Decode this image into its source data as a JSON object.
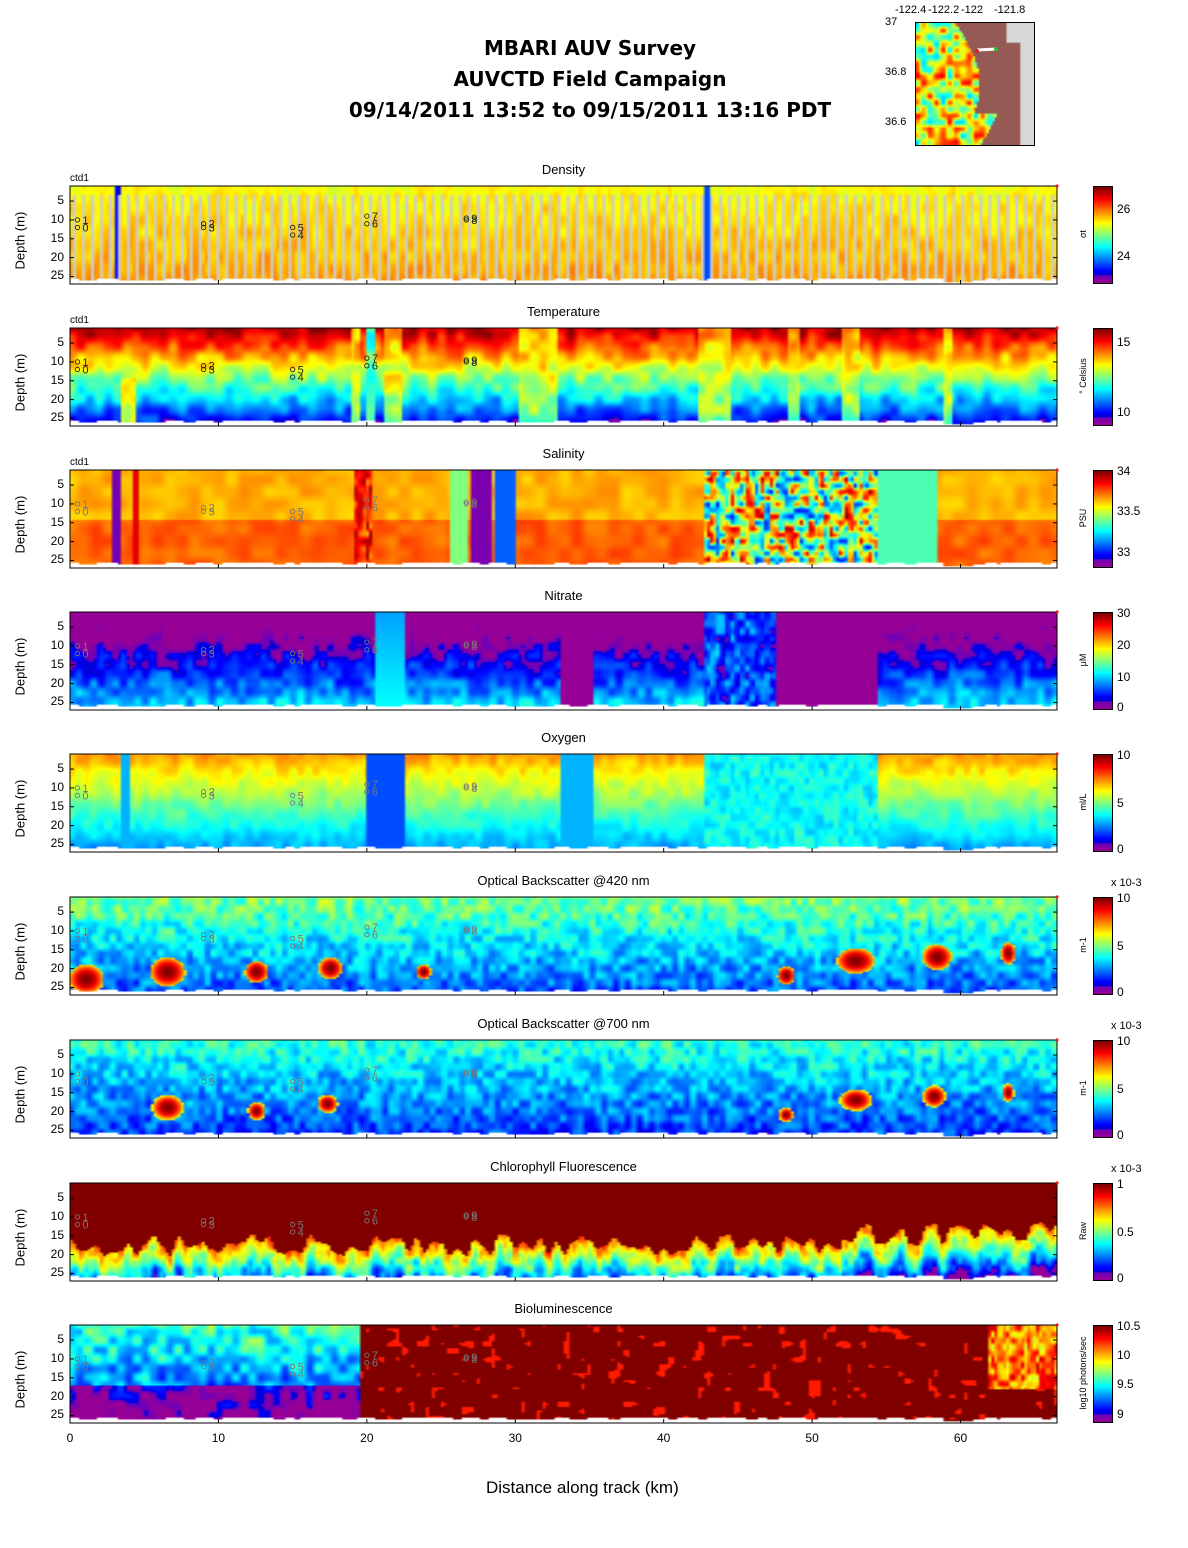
{
  "header": {
    "line1": "MBARI AUV Survey",
    "line2": "AUVCTD Field Campaign",
    "line3": "09/14/2011 13:52  to 09/15/2011 13:16 PDT"
  },
  "map": {
    "lon_ticks": [
      "-122.4",
      "-122.2",
      "-122",
      "-121.8"
    ],
    "lat_ticks": [
      "37",
      "36.8",
      "36.6"
    ]
  },
  "chart_data": {
    "type": "heatmap",
    "xlabel": "Distance along track (km)",
    "xlim": [
      0,
      66.5
    ],
    "x_ticks": [
      "0",
      "10",
      "20",
      "30",
      "40",
      "50",
      "60"
    ],
    "ylabel": "Depth (m)",
    "ylim": [
      27,
      1
    ],
    "y_ticks": [
      "5",
      "10",
      "15",
      "20",
      "25"
    ],
    "colormap": "jet",
    "source_label": "ctd1",
    "waypoints": [
      {
        "label": "1",
        "km": 0.5,
        "depth": 10
      },
      {
        "label": "0",
        "km": 0.5,
        "depth": 12
      },
      {
        "label": "2",
        "km": 9.0,
        "depth": 11
      },
      {
        "label": "3",
        "km": 9.0,
        "depth": 12
      },
      {
        "label": "5",
        "km": 15.0,
        "depth": 12
      },
      {
        "label": "4",
        "km": 15.0,
        "depth": 14
      },
      {
        "label": "7",
        "km": 20.0,
        "depth": 9
      },
      {
        "label": "6",
        "km": 20.0,
        "depth": 11
      },
      {
        "label": "9",
        "km": 26.7,
        "depth": 9.5
      },
      {
        "label": "8",
        "km": 26.7,
        "depth": 10
      }
    ],
    "panels": [
      {
        "title": "Density",
        "colorbar_label": "σt",
        "cb_ticks": [
          "26",
          "24"
        ],
        "cb_tick_values": [
          26,
          24
        ],
        "cb_range": [
          22.8,
          27
        ],
        "multiplier": "",
        "show_ctd": true
      },
      {
        "title": "Temperature",
        "colorbar_label": "° Celsius",
        "cb_ticks": [
          "15",
          "10"
        ],
        "cb_tick_values": [
          15,
          10
        ],
        "cb_range": [
          9,
          16
        ],
        "multiplier": "",
        "show_ctd": true
      },
      {
        "title": "Salinity",
        "colorbar_label": "PSU",
        "cb_ticks": [
          "34",
          "33.5",
          "33"
        ],
        "cb_tick_values": [
          34,
          33.5,
          33
        ],
        "cb_range": [
          32.8,
          34
        ],
        "multiplier": "",
        "show_ctd": true
      },
      {
        "title": "Nitrate",
        "colorbar_label": "μM",
        "cb_ticks": [
          "30",
          "20",
          "10",
          "0"
        ],
        "cb_tick_values": [
          30,
          20,
          10,
          0
        ],
        "cb_range": [
          0,
          30
        ],
        "multiplier": "",
        "show_ctd": false
      },
      {
        "title": "Oxygen",
        "colorbar_label": "ml/L",
        "cb_ticks": [
          "10",
          "5",
          "0"
        ],
        "cb_tick_values": [
          10,
          5,
          0
        ],
        "cb_range": [
          0,
          10
        ],
        "multiplier": "",
        "show_ctd": false
      },
      {
        "title": "Optical Backscatter @420 nm",
        "colorbar_label": "m-1",
        "cb_ticks": [
          "10",
          "5",
          "0"
        ],
        "cb_tick_values": [
          10,
          5,
          0
        ],
        "cb_range": [
          0,
          10
        ],
        "multiplier": "x 10-3",
        "show_ctd": false
      },
      {
        "title": "Optical Backscatter @700 nm",
        "colorbar_label": "m-1",
        "cb_ticks": [
          "10",
          "5",
          "0"
        ],
        "cb_tick_values": [
          10,
          5,
          0
        ],
        "cb_range": [
          0,
          10
        ],
        "multiplier": "x 10-3",
        "show_ctd": false
      },
      {
        "title": "Chlorophyll Fluorescence",
        "colorbar_label": "Raw",
        "cb_ticks": [
          "1",
          "0.5",
          "0"
        ],
        "cb_tick_values": [
          1,
          0.5,
          0
        ],
        "cb_range": [
          0,
          1
        ],
        "multiplier": "x 10-3",
        "show_ctd": false
      },
      {
        "title": "Bioluminescence",
        "colorbar_label": "log10 photons/sec",
        "cb_ticks": [
          "10.5",
          "10",
          "9.5",
          "9"
        ],
        "cb_tick_values": [
          10.5,
          10,
          9.5,
          9
        ],
        "cb_range": [
          8.85,
          10.5
        ],
        "multiplier": "",
        "show_ctd": false
      }
    ]
  }
}
